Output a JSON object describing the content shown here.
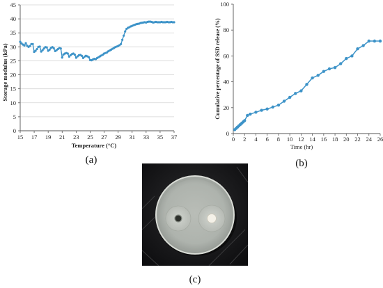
{
  "chart_data": [
    {
      "type": "scatter",
      "panel_label": "(a)",
      "xlabel": "Temperature (°C)",
      "ylabel": "Storage modulus (kPa)",
      "xlim": [
        15,
        37
      ],
      "ylim": [
        0,
        45
      ],
      "xticks": [
        "15",
        "17",
        "19",
        "21",
        "23",
        "25",
        "27",
        "29",
        "31",
        "33",
        "35",
        "37"
      ],
      "yticks": [
        "0",
        "5",
        "10",
        "15",
        "20",
        "25",
        "30",
        "35",
        "40",
        "45"
      ],
      "grid": "horizontal",
      "series_color": "#3D93C8",
      "x": [
        15.0,
        15.2,
        15.4,
        15.6,
        15.8,
        16.0,
        16.2,
        16.4,
        16.6,
        16.8,
        17.0,
        17.2,
        17.4,
        17.6,
        17.8,
        18.0,
        18.2,
        18.4,
        18.6,
        18.8,
        19.0,
        19.2,
        19.4,
        19.6,
        19.8,
        20.0,
        20.2,
        20.4,
        20.6,
        20.8,
        21.0,
        21.2,
        21.4,
        21.6,
        21.8,
        22.0,
        22.2,
        22.4,
        22.6,
        22.8,
        23.0,
        23.2,
        23.4,
        23.6,
        23.8,
        24.0,
        24.2,
        24.4,
        24.6,
        24.8,
        25.0,
        25.2,
        25.4,
        25.6,
        25.8,
        26.0,
        26.2,
        26.4,
        26.6,
        26.8,
        27.0,
        27.2,
        27.4,
        27.6,
        27.8,
        28.0,
        28.2,
        28.4,
        28.6,
        28.8,
        29.0,
        29.2,
        29.4,
        29.6,
        29.8,
        30.0,
        30.2,
        30.4,
        30.6,
        30.8,
        31.0,
        31.2,
        31.4,
        31.6,
        31.8,
        32.0,
        32.2,
        32.4,
        32.6,
        32.8,
        33.0,
        33.2,
        33.4,
        33.6,
        33.8,
        34.0,
        34.2,
        34.4,
        34.6,
        34.8,
        35.0,
        35.2,
        35.4,
        35.6,
        35.8,
        36.0,
        36.2,
        36.4,
        36.6,
        36.8,
        37.0
      ],
      "y": [
        31.8,
        31.2,
        30.8,
        30.5,
        31.3,
        30.4,
        30.0,
        30.3,
        31.0,
        31.0,
        28.2,
        28.6,
        29.2,
        30.0,
        30.1,
        28.3,
        28.8,
        29.4,
        29.9,
        29.8,
        28.6,
        29.0,
        29.6,
        29.9,
        29.5,
        28.5,
        28.8,
        29.2,
        29.6,
        29.4,
        26.2,
        27.3,
        27.6,
        27.8,
        27.6,
        26.5,
        27.0,
        27.4,
        27.6,
        27.2,
        26.1,
        26.6,
        27.0,
        27.1,
        26.8,
        26.0,
        26.5,
        26.8,
        26.6,
        26.3,
        25.3,
        25.2,
        25.5,
        25.7,
        25.6,
        26.0,
        26.3,
        26.6,
        26.9,
        27.2,
        27.6,
        27.8,
        28.0,
        28.4,
        28.7,
        29.0,
        29.3,
        29.6,
        29.9,
        30.1,
        30.3,
        30.6,
        31.0,
        32.5,
        34.0,
        35.5,
        36.4,
        36.8,
        37.0,
        37.3,
        37.5,
        37.7,
        37.9,
        38.1,
        38.2,
        38.3,
        38.5,
        38.6,
        38.7,
        38.8,
        38.7,
        38.9,
        39.0,
        39.0,
        38.9,
        38.7,
        38.8,
        38.9,
        38.8,
        38.8,
        38.8,
        38.9,
        38.8,
        38.8,
        38.8,
        38.9,
        38.8,
        38.8,
        38.9,
        38.8,
        38.8
      ]
    },
    {
      "type": "line",
      "panel_label": "(b)",
      "xlabel": "Time (hr)",
      "ylabel": "Cumulative percentage of SSD release  (%)",
      "xlim": [
        0,
        26
      ],
      "ylim": [
        0,
        100
      ],
      "xticks": [
        "0",
        "2",
        "4",
        "6",
        "8",
        "10",
        "12",
        "14",
        "16",
        "18",
        "20",
        "22",
        "24",
        "26"
      ],
      "yticks": [
        "0",
        "20",
        "40",
        "60",
        "80",
        "100"
      ],
      "grid": "none",
      "markers": "circle",
      "series_color": "#3D93C8",
      "x": [
        0.25,
        0.5,
        0.75,
        1,
        1.25,
        1.5,
        1.75,
        2,
        2.5,
        3,
        4,
        5,
        6,
        7,
        8,
        9,
        10,
        11,
        12,
        13,
        14,
        15,
        16,
        17,
        18,
        19,
        20,
        21,
        22,
        23,
        24,
        25,
        26
      ],
      "y": [
        3,
        4,
        5,
        6,
        7,
        8,
        9,
        10,
        14,
        15,
        16.5,
        18,
        19,
        20.5,
        22,
        25,
        28,
        31,
        33,
        38,
        43,
        45,
        48,
        50,
        51,
        54,
        58,
        60,
        65.5,
        68,
        71.5,
        71.5,
        71.5
      ]
    }
  ],
  "photo": {
    "panel_label": "(c)"
  }
}
